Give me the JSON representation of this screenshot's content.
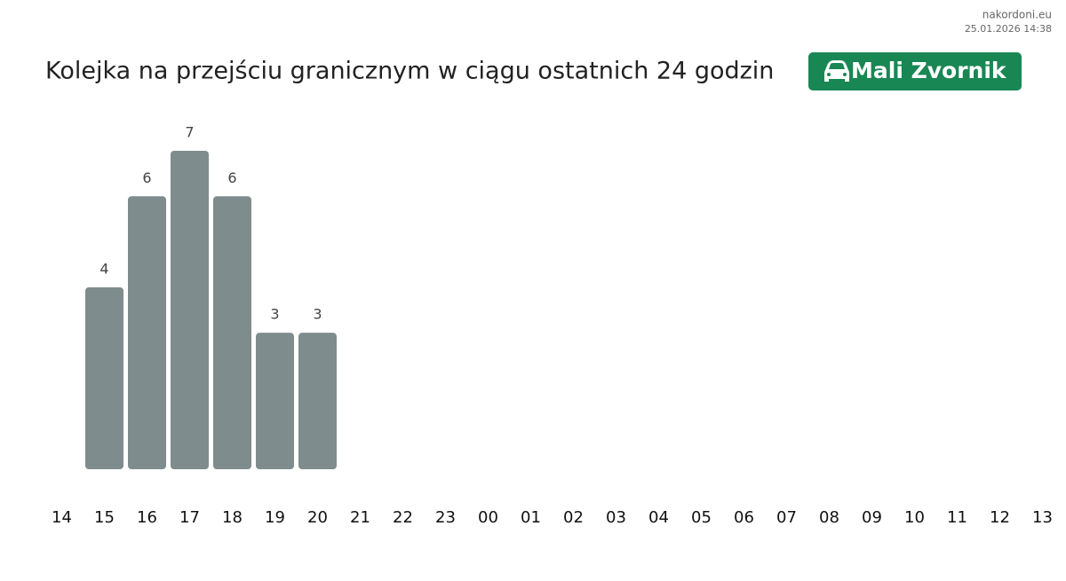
{
  "site": "nakordoni.eu",
  "timestamp": "25.01.2026 14:38",
  "chart_data": {
    "type": "bar",
    "title": "Kolejka na przejściu granicznym w ciągu ostatnich 24 godzin",
    "badge": "Mali Zvornik",
    "categories": [
      "14",
      "15",
      "16",
      "17",
      "18",
      "19",
      "20",
      "21",
      "22",
      "23",
      "00",
      "01",
      "02",
      "03",
      "04",
      "05",
      "06",
      "07",
      "08",
      "09",
      "10",
      "11",
      "12",
      "13"
    ],
    "values": [
      null,
      4,
      6,
      7,
      6,
      3,
      3,
      null,
      null,
      null,
      null,
      null,
      null,
      null,
      null,
      null,
      null,
      null,
      null,
      null,
      null,
      null,
      null,
      null
    ],
    "color": "#7f8c8d"
  }
}
